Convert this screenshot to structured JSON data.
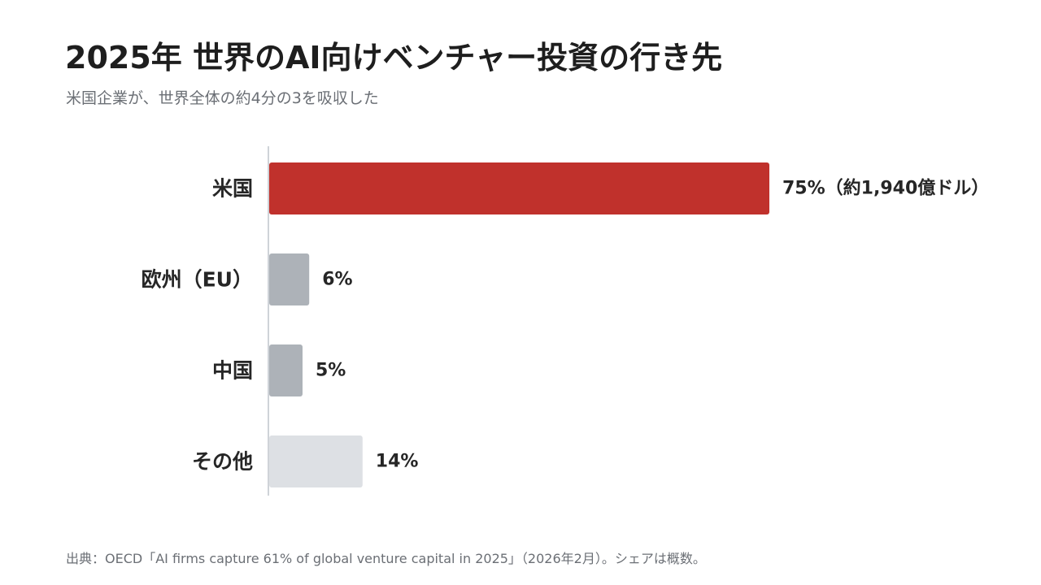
{
  "title": "2025年 世界のAI向けベンチャー投資の行き先",
  "subtitle": "米国企業が、世界全体の約4分の3を吸収した",
  "source": "出典：OECD「AI firms capture 61% of global venture capital in 2025」（2026年2月）。シェアは概数。",
  "chart_data": {
    "type": "bar",
    "orientation": "horizontal",
    "title": "2025年 世界のAI向けベンチャー投資の行き先",
    "subtitle": "米国企業が、世界全体の約4分の3を吸収した",
    "categories": [
      "米国",
      "欧州（EU）",
      "中国",
      "その他"
    ],
    "values": [
      75,
      6,
      5,
      14
    ],
    "value_labels": [
      "75%（約1,940億ドル）",
      "6%",
      "5%",
      "14%"
    ],
    "unit": "%",
    "colors": [
      "#c0312c",
      "#adb2b8",
      "#adb2b8",
      "#dde0e4"
    ],
    "xlim": [
      0,
      75
    ],
    "grid": false,
    "legend": "none"
  }
}
